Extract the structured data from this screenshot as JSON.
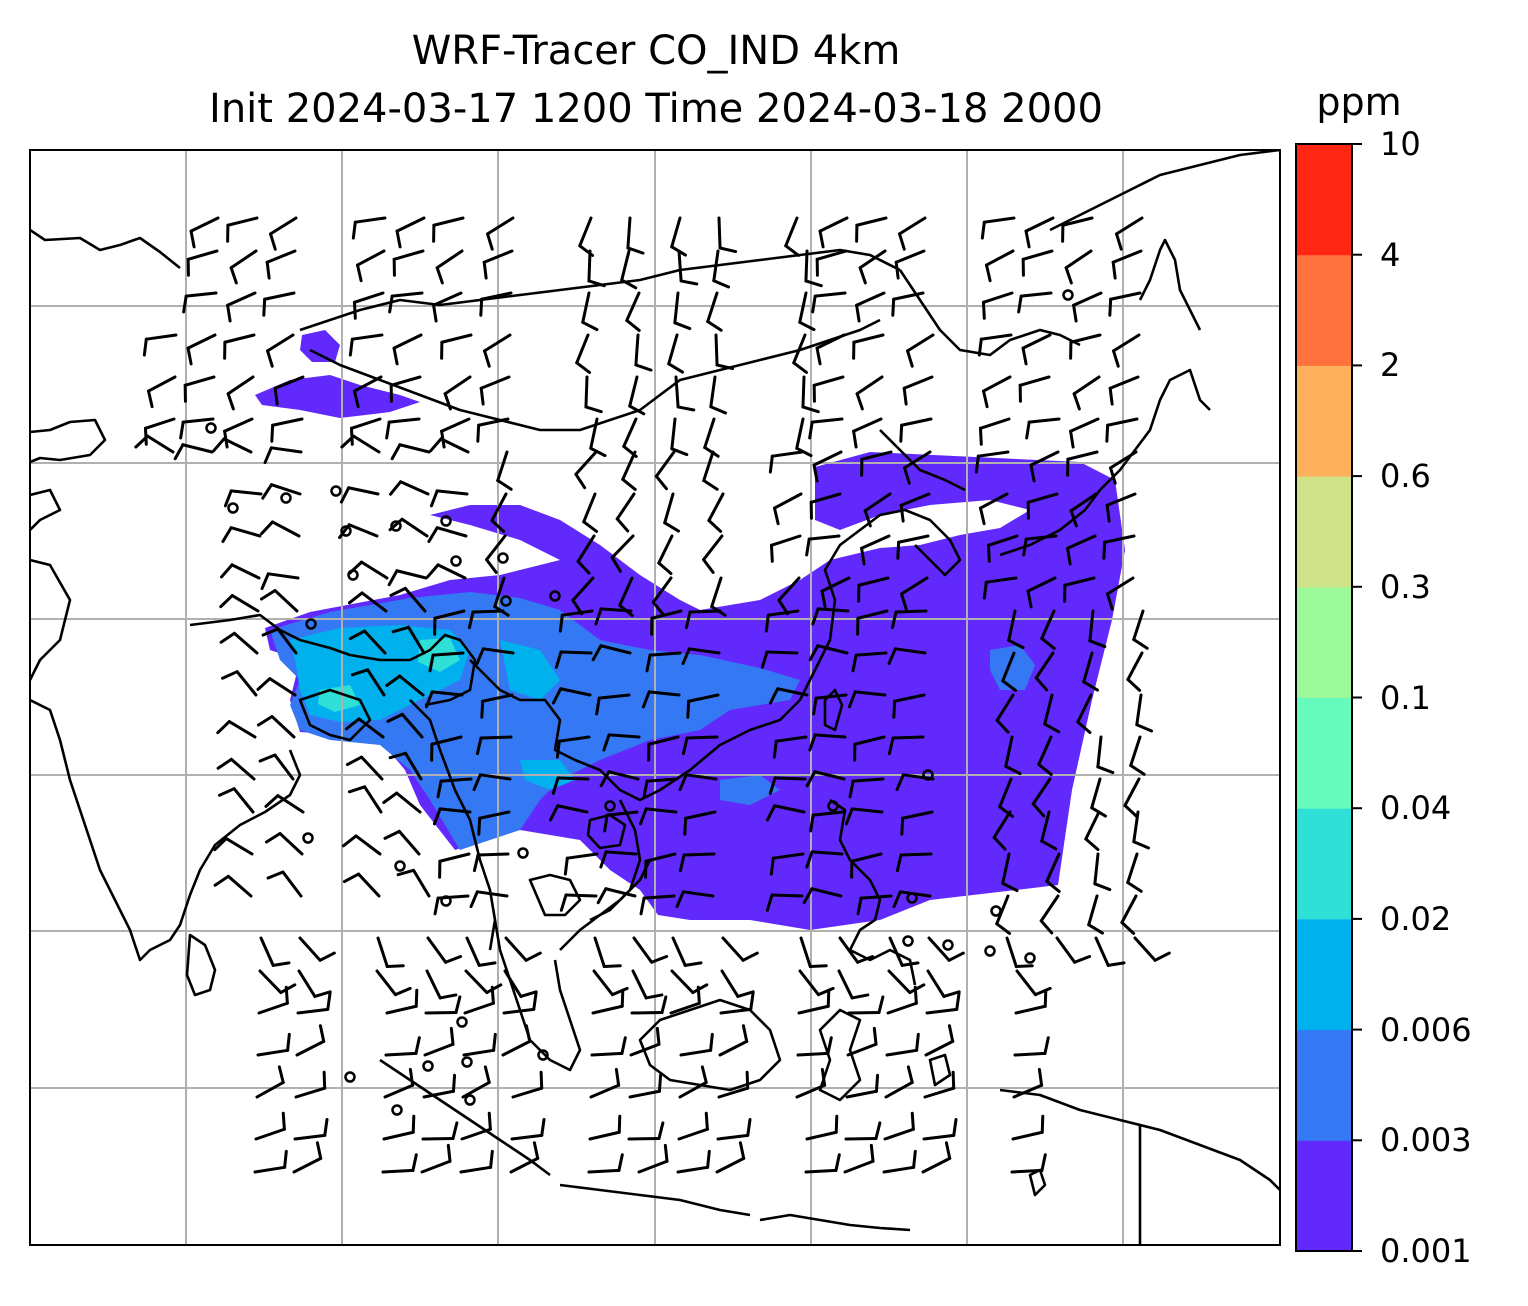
{
  "title": {
    "line1": "WRF-Tracer CO_IND 4km",
    "line2": "Init 2024-03-17 1200 Time 2024-03-18 2000"
  },
  "colorbar": {
    "unit": "ppm",
    "levels": [
      "0.001",
      "0.003",
      "0.006",
      "0.02",
      "0.04",
      "0.1",
      "0.3",
      "0.6",
      "2",
      "4",
      "10"
    ],
    "colors": [
      "#6129fb",
      "#3478f3",
      "#01b1ee",
      "#2fe0d6",
      "#66fbbd",
      "#9cf99a",
      "#d0e287",
      "#feb15c",
      "#ff713d",
      "#ff2713"
    ]
  },
  "map": {
    "gridlines": "on",
    "coastline_color": "#000000",
    "gridline_color": "#b0b0b0",
    "plume_colors": {
      "low": "#6129fb",
      "mid": "#3478f3",
      "high": "#01b1ee",
      "peak": "#2fe0d6"
    },
    "wind_barbs": "black"
  }
}
